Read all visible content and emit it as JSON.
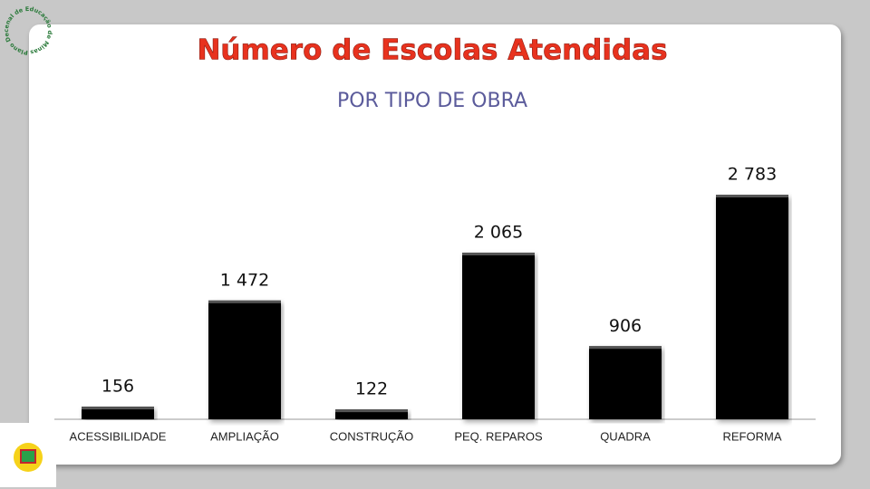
{
  "chart_data": {
    "type": "bar",
    "title": "Número de Escolas Atendidas",
    "subtitle": "POR TIPO DE OBRA",
    "categories": [
      "ACESSIBILIDADE",
      "AMPLIAÇÃO",
      "CONSTRUÇÃO",
      "PEQ. REPAROS",
      "QUADRA",
      "REFORMA"
    ],
    "values": [
      156,
      1472,
      122,
      2065,
      906,
      2783
    ],
    "value_labels": [
      "156",
      "1 472",
      "122",
      "2 065",
      "906",
      "2 783"
    ],
    "color": "#000000"
  },
  "logo": {
    "text": "Plano Decenal de Educação de Minas Gerais"
  }
}
